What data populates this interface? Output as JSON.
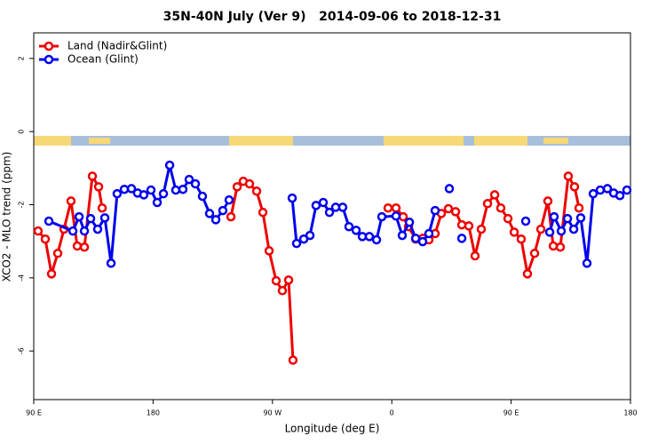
{
  "chart_data": {
    "type": "line",
    "title": "35N-40N July (Ver 9)   2014-09-06 to 2018-12-31",
    "x_label": "Longitude (deg E)",
    "y_label": "XCO2 - MLO trend (ppm)",
    "xlim": [
      90,
      540
    ],
    "xticks": [
      {
        "value": 90,
        "label": "90 E"
      },
      180,
      {
        "value": 270,
        "label": "90 W"
      },
      {
        "value": 360,
        "label": "0"
      },
      {
        "value": 450,
        "label": "90 E"
      },
      {
        "value": 540,
        "label": "180"
      }
    ],
    "ylim": [
      -7.33,
      2.7
    ],
    "yticks": [
      2,
      0,
      -2,
      -4,
      -6
    ],
    "legend": "top-left",
    "series": [
      {
        "name": "Land (Nadir&Glint)",
        "color": "#ee0000",
        "x": [
          93.3,
          98.7,
          103.4,
          108.1,
          112.8,
          118.1,
          122.8,
          128.2,
          134.2,
          138.9,
          141.6,
          null,
          238.7,
          243.4,
          248.0,
          252.7,
          258.1,
          262.8,
          267.5,
          272.8,
          277.5,
          282.2,
          285.5,
          null,
          357.2,
          363.2,
          368.6,
          372.6,
          378.0,
          383.3,
          388.0,
          392.7,
          397.4,
          402.7,
          408.1,
          412.8,
          418.1,
          422.8,
          427.5,
          432.2,
          437.6,
          442.2,
          447.6,
          452.3,
          457.6,
          462.3,
          467.7,
          472.4,
          477.7,
          481.8,
          487.1,
          493.1,
          497.8,
          501.2
        ],
        "values": [
          -2.72,
          -2.94,
          -3.89,
          -3.33,
          -2.67,
          -1.9,
          -3.13,
          -3.16,
          -1.22,
          -1.51,
          -2.09,
          null,
          -2.33,
          -1.51,
          -1.36,
          -1.43,
          -1.63,
          -2.21,
          -3.26,
          -4.08,
          -4.35,
          -4.06,
          -6.25,
          null,
          -2.09,
          -2.09,
          -2.33,
          -2.6,
          -2.94,
          -2.92,
          -2.96,
          -2.79,
          -2.24,
          -2.11,
          -2.19,
          -2.55,
          -2.58,
          -3.4,
          -2.67,
          -1.97,
          -1.73,
          -2.09,
          -2.38,
          -2.75,
          -2.94,
          -3.89,
          -3.33,
          -2.67,
          -1.9,
          -3.13,
          -3.16,
          -1.22,
          -1.51,
          -2.09
        ]
      },
      {
        "name": "Ocean (Glint)",
        "color": "#0000ee",
        "x": [
          101.4,
          119.5,
          124.2,
          128.2,
          132.9,
          138.2,
          143.6,
          148.3,
          152.9,
          158.3,
          163.7,
          168.3,
          173.0,
          178.4,
          183.1,
          187.8,
          192.5,
          197.1,
          202.5,
          207.2,
          211.9,
          217.2,
          222.6,
          227.3,
          232.6,
          237.3,
          null,
          284.9,
          288.2,
          293.6,
          298.3,
          302.9,
          308.3,
          313.0,
          317.7,
          323.0,
          327.7,
          333.1,
          337.8,
          343.1,
          348.5,
          352.5,
          363.2,
          367.9,
          373.3,
          378.0,
          383.3,
          388.0,
          392.7,
          null,
          403.4,
          null,
          412.8,
          null,
          461.0,
          null,
          479.1,
          482.4,
          487.8,
          492.5,
          497.2,
          502.5,
          507.2,
          511.9,
          517.2,
          522.6,
          527.3,
          532.0,
          537.3
        ],
        "values": [
          -2.45,
          -2.72,
          -2.33,
          -2.72,
          -2.38,
          -2.67,
          -2.36,
          -3.6,
          -1.7,
          -1.58,
          -1.56,
          -1.68,
          -1.73,
          -1.6,
          -1.94,
          -1.7,
          -0.92,
          -1.6,
          -1.58,
          -1.31,
          -1.43,
          -1.77,
          -2.24,
          -2.41,
          -2.16,
          -1.87,
          null,
          -1.82,
          -3.06,
          -2.94,
          -2.84,
          -2.02,
          -1.94,
          -2.21,
          -2.07,
          -2.07,
          -2.6,
          -2.7,
          -2.87,
          -2.87,
          -2.96,
          -2.33,
          -2.31,
          -2.84,
          -2.48,
          -2.92,
          -3.01,
          -2.79,
          -2.16,
          null,
          -1.56,
          null,
          -2.92,
          null,
          -2.45,
          null,
          -2.75,
          -2.33,
          -2.72,
          -2.38,
          -2.67,
          -2.36,
          -3.6,
          -1.7,
          -1.6,
          -1.56,
          -1.68,
          -1.75,
          -1.6
        ]
      }
    ]
  }
}
